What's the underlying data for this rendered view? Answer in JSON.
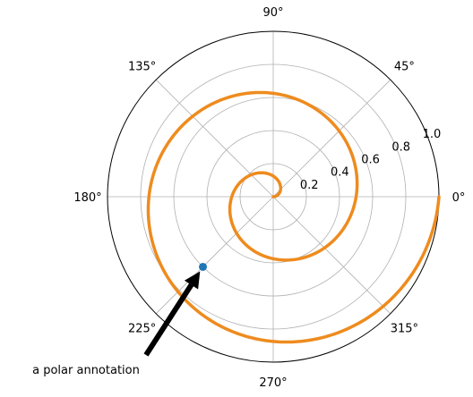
{
  "chart_data": {
    "type": "line",
    "projection": "polar",
    "title": "",
    "grid": true,
    "rlim": [
      0,
      1.0
    ],
    "r_ticks": [
      "0.2",
      "0.4",
      "0.6",
      "0.8",
      "1.0"
    ],
    "r_tick_values": [
      0.2,
      0.4,
      0.6,
      0.8,
      1.0
    ],
    "theta_ticks": [
      "0°",
      "45°",
      "90°",
      "135°",
      "180°",
      "225°",
      "270°",
      "315°"
    ],
    "theta_tick_values_deg": [
      0,
      45,
      90,
      135,
      180,
      225,
      270,
      315
    ],
    "series": [
      {
        "function": "r = t / (4*pi), theta = t",
        "t_range_rad": [
          0,
          12.566
        ],
        "color": "#ee8b1e"
      }
    ],
    "highlight_point": {
      "theta_rad": 3.927,
      "r": 0.6,
      "color": "#1f77b4"
    },
    "annotation": {
      "text": "a polar annotation",
      "target": {
        "theta_rad": 3.927,
        "r": 0.6
      },
      "arrow_color": "#000000"
    },
    "colors": {
      "grid": "#b0b0b0",
      "frame": "#000000"
    }
  }
}
